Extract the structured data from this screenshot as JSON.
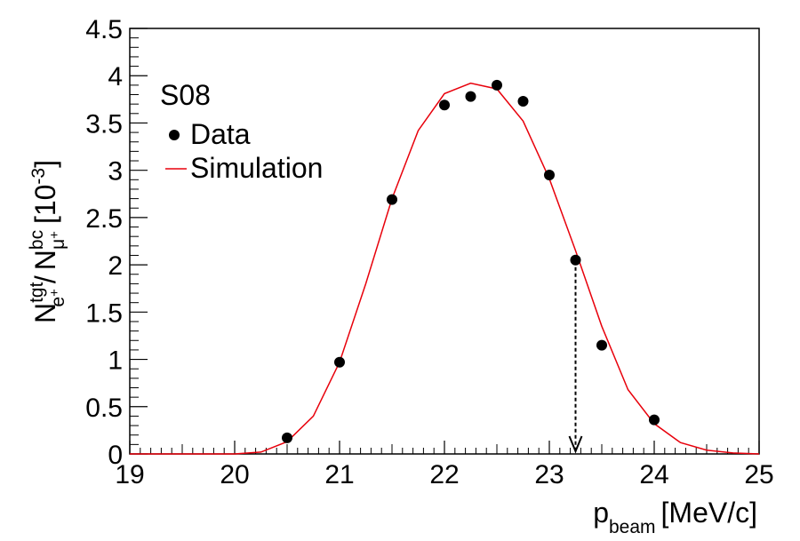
{
  "chart_data": {
    "type": "scatter",
    "label": "S08",
    "xlim": [
      19,
      25
    ],
    "ylim": [
      0,
      4.5
    ],
    "x_ticks": [
      "19",
      "20",
      "21",
      "22",
      "23",
      "24",
      "25"
    ],
    "y_ticks": [
      "0",
      "0.5",
      "1",
      "1.5",
      "2",
      "2.5",
      "3",
      "3.5",
      "4",
      "4.5"
    ],
    "xlabel": {
      "main": "p",
      "sub": "beam",
      "unit": "[MeV/c]"
    },
    "ylabel": {
      "n1": "N",
      "n1_sup": "tgt",
      "n1_sub": "e",
      "n1_sub_sup": "+",
      "sep": "/",
      "n2": "N",
      "n2_sup": "bc",
      "n2_sub": "μ",
      "n2_sub_sup": "+",
      "unit_open": "[10",
      "unit_exp": "-3",
      "unit_close": "]"
    },
    "legend": {
      "data_label": "Data",
      "sim_label": "Simulation",
      "position": "top-left"
    },
    "series": [
      {
        "name": "Data",
        "kind": "points",
        "color": "#000000",
        "x": [
          20.5,
          21.0,
          21.5,
          22.0,
          22.25,
          22.5,
          22.75,
          23.0,
          23.25,
          23.5,
          24.0
        ],
        "y": [
          0.17,
          0.97,
          2.69,
          3.69,
          3.78,
          3.9,
          3.73,
          2.95,
          2.05,
          1.15,
          0.36
        ]
      },
      {
        "name": "Simulation",
        "kind": "line",
        "color": "#e8000b",
        "x": [
          19.0,
          19.25,
          19.5,
          19.75,
          20.0,
          20.25,
          20.5,
          20.75,
          21.0,
          21.25,
          21.5,
          21.75,
          22.0,
          22.25,
          22.5,
          22.75,
          23.0,
          23.25,
          23.5,
          23.75,
          24.0,
          24.25,
          24.5,
          24.75,
          25.0
        ],
        "y": [
          0,
          0,
          0,
          0,
          0,
          0.02,
          0.13,
          0.4,
          0.97,
          1.8,
          2.7,
          3.42,
          3.81,
          3.92,
          3.86,
          3.52,
          2.91,
          2.15,
          1.35,
          0.68,
          0.32,
          0.12,
          0.04,
          0.01,
          0
        ]
      }
    ],
    "marker": {
      "x": 23.25,
      "y_top": 2.05,
      "style": "dashed-arrow-down"
    }
  }
}
